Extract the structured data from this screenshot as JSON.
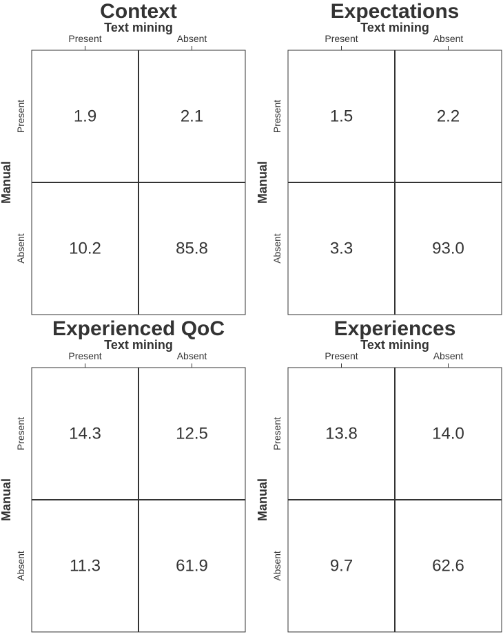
{
  "chart_data": [
    {
      "type": "table",
      "title": "Context",
      "xlabel": "Text mining",
      "ylabel": "Manual",
      "columns": [
        "Present",
        "Absent"
      ],
      "rows": [
        "Present",
        "Absent"
      ],
      "values": [
        [
          "1.9",
          "2.1"
        ],
        [
          "10.2",
          "85.8"
        ]
      ]
    },
    {
      "type": "table",
      "title": "Expectations",
      "xlabel": "Text mining",
      "ylabel": "Manual",
      "columns": [
        "Present",
        "Absent"
      ],
      "rows": [
        "Present",
        "Absent"
      ],
      "values": [
        [
          "1.5",
          "2.2"
        ],
        [
          "3.3",
          "93.0"
        ]
      ]
    },
    {
      "type": "table",
      "title": "Experienced QoC",
      "xlabel": "Text mining",
      "ylabel": "Manual",
      "columns": [
        "Present",
        "Absent"
      ],
      "rows": [
        "Present",
        "Absent"
      ],
      "values": [
        [
          "14.3",
          "12.5"
        ],
        [
          "11.3",
          "61.9"
        ]
      ]
    },
    {
      "type": "table",
      "title": "Experiences",
      "xlabel": "Text mining",
      "ylabel": "Manual",
      "columns": [
        "Present",
        "Absent"
      ],
      "rows": [
        "Present",
        "Absent"
      ],
      "values": [
        [
          "13.8",
          "14.0"
        ],
        [
          "9.7",
          "62.6"
        ]
      ]
    }
  ]
}
